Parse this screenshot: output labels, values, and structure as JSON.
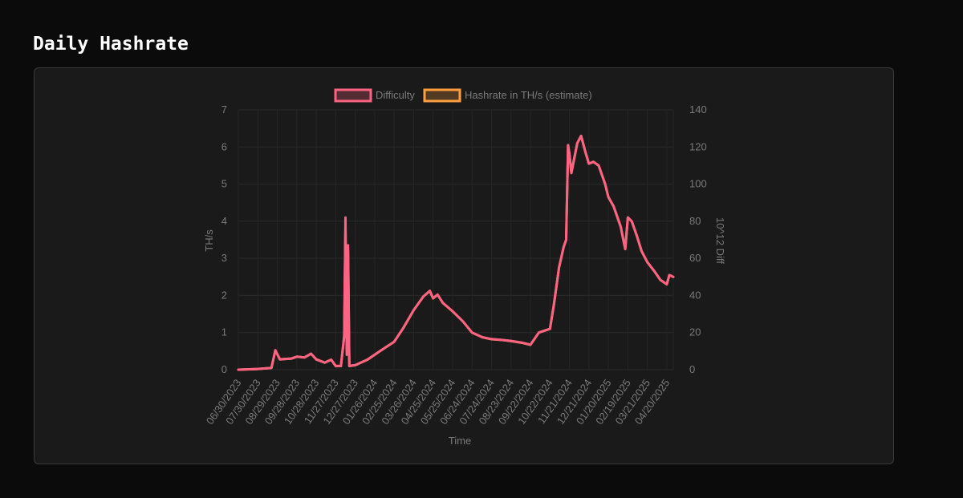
{
  "page": {
    "title": "Daily Hashrate"
  },
  "chart_data": {
    "type": "line",
    "title": "",
    "xlabel": "Time",
    "ylabel_left": "TH/s",
    "ylabel_right": "10^12 Diff",
    "ylim_left": [
      0,
      7
    ],
    "ylim_right": [
      0,
      140
    ],
    "yticks_left": [
      "0",
      "1",
      "2",
      "3",
      "4",
      "5",
      "6",
      "7"
    ],
    "yticks_right": [
      "0",
      "20",
      "40",
      "60",
      "80",
      "100",
      "120",
      "140"
    ],
    "xlim": [
      "06/30/2023",
      "04/30/2025"
    ],
    "xticks": [
      "06/30/2023",
      "07/30/2023",
      "08/29/2023",
      "09/28/2023",
      "10/28/2023",
      "11/27/2023",
      "12/27/2023",
      "01/26/2024",
      "02/25/2024",
      "03/26/2024",
      "04/25/2024",
      "05/25/2024",
      "06/24/2024",
      "07/24/2024",
      "08/23/2024",
      "09/22/2024",
      "10/22/2024",
      "11/21/2024",
      "12/21/2024",
      "01/20/2025",
      "02/19/2025",
      "03/21/2025",
      "04/20/2025"
    ],
    "grid": true,
    "legend_position": "top",
    "series": [
      {
        "name": "Difficulty",
        "axis": "right",
        "color": "#ff6384",
        "points": [
          [
            "06/30/2023",
            0
          ],
          [
            "07/30/2023",
            0.4
          ],
          [
            "08/20/2023",
            1
          ],
          [
            "08/26/2023",
            10.5
          ],
          [
            "09/02/2023",
            5.5
          ],
          [
            "09/20/2023",
            6
          ],
          [
            "09/28/2023",
            7
          ],
          [
            "10/10/2023",
            6.6
          ],
          [
            "10/20/2023",
            8.6
          ],
          [
            "10/28/2023",
            5.5
          ],
          [
            "11/10/2023",
            3.8
          ],
          [
            "11/20/2023",
            5.4
          ],
          [
            "11/27/2023",
            2
          ],
          [
            "12/05/2023",
            2
          ],
          [
            "12/10/2023",
            18
          ],
          [
            "12/12/2023",
            82
          ],
          [
            "12/14/2023",
            8
          ],
          [
            "12/16/2023",
            67
          ],
          [
            "12/18/2023",
            2
          ],
          [
            "12/27/2023",
            2.4
          ],
          [
            "01/15/2024",
            5.5
          ],
          [
            "02/05/2024",
            10.5
          ],
          [
            "02/25/2024",
            15
          ],
          [
            "03/10/2024",
            22.5
          ],
          [
            "03/26/2024",
            32
          ],
          [
            "04/10/2024",
            39.5
          ],
          [
            "04/20/2024",
            42.5
          ],
          [
            "04/25/2024",
            38.5
          ],
          [
            "05/02/2024",
            40.5
          ],
          [
            "05/10/2024",
            36
          ],
          [
            "05/25/2024",
            31.5
          ],
          [
            "06/10/2024",
            26
          ],
          [
            "06/24/2024",
            20
          ],
          [
            "07/10/2024",
            17.5
          ],
          [
            "07/24/2024",
            16.5
          ],
          [
            "08/10/2024",
            16
          ],
          [
            "08/23/2024",
            15.5
          ],
          [
            "09/10/2024",
            14.5
          ],
          [
            "09/22/2024",
            13.5
          ],
          [
            "10/05/2024",
            20
          ],
          [
            "10/22/2024",
            22
          ],
          [
            "10/28/2024",
            35
          ],
          [
            "11/05/2024",
            55
          ],
          [
            "11/12/2024",
            66
          ],
          [
            "11/16/2024",
            70
          ],
          [
            "11/19/2024",
            121
          ],
          [
            "11/21/2024",
            116
          ],
          [
            "11/24/2024",
            106
          ],
          [
            "12/03/2024",
            122
          ],
          [
            "12/09/2024",
            126
          ],
          [
            "12/15/2024",
            118
          ],
          [
            "12/21/2024",
            111
          ],
          [
            "12/28/2024",
            112
          ],
          [
            "01/05/2025",
            110
          ],
          [
            "01/15/2025",
            100
          ],
          [
            "01/20/2025",
            93
          ],
          [
            "01/28/2025",
            88
          ],
          [
            "02/08/2025",
            77
          ],
          [
            "02/15/2025",
            65
          ],
          [
            "02/19/2025",
            82
          ],
          [
            "02/25/2025",
            80
          ],
          [
            "03/05/2025",
            72
          ],
          [
            "03/12/2025",
            64
          ],
          [
            "03/21/2025",
            58
          ],
          [
            "04/01/2025",
            53
          ],
          [
            "04/10/2025",
            48.5
          ],
          [
            "04/20/2025",
            46
          ],
          [
            "04/24/2025",
            51
          ],
          [
            "04/30/2025",
            50
          ]
        ]
      },
      {
        "name": "Hashrate in TH/s (estimate)",
        "axis": "left",
        "color": "#ff9f40",
        "points": [
          [
            "06/30/2023",
            0
          ],
          [
            "07/30/2023",
            0.02
          ],
          [
            "08/20/2023",
            0.05
          ],
          [
            "08/26/2023",
            0.52
          ],
          [
            "09/02/2023",
            0.28
          ],
          [
            "09/20/2023",
            0.3
          ],
          [
            "09/28/2023",
            0.35
          ],
          [
            "10/10/2023",
            0.33
          ],
          [
            "10/20/2023",
            0.43
          ],
          [
            "10/28/2023",
            0.28
          ],
          [
            "11/10/2023",
            0.19
          ],
          [
            "11/20/2023",
            0.27
          ],
          [
            "11/27/2023",
            0.1
          ],
          [
            "12/05/2023",
            0.1
          ],
          [
            "12/10/2023",
            0.9
          ],
          [
            "12/12/2023",
            3.8
          ],
          [
            "12/14/2023",
            0.5
          ],
          [
            "12/16/2023",
            3.2
          ],
          [
            "12/18/2023",
            0.1
          ],
          [
            "12/27/2023",
            0.12
          ],
          [
            "01/15/2024",
            0.27
          ],
          [
            "02/05/2024",
            0.52
          ],
          [
            "02/25/2024",
            0.75
          ],
          [
            "03/10/2024",
            1.12
          ],
          [
            "03/26/2024",
            1.6
          ],
          [
            "04/10/2024",
            1.97
          ],
          [
            "04/20/2024",
            2.12
          ],
          [
            "04/25/2024",
            1.92
          ],
          [
            "05/02/2024",
            2.02
          ],
          [
            "05/10/2024",
            1.8
          ],
          [
            "05/25/2024",
            1.57
          ],
          [
            "06/10/2024",
            1.3
          ],
          [
            "06/24/2024",
            1.0
          ],
          [
            "07/10/2024",
            0.87
          ],
          [
            "07/24/2024",
            0.82
          ],
          [
            "08/10/2024",
            0.8
          ],
          [
            "08/23/2024",
            0.77
          ],
          [
            "09/10/2024",
            0.72
          ],
          [
            "09/22/2024",
            0.67
          ],
          [
            "10/05/2024",
            1.0
          ],
          [
            "10/22/2024",
            1.1
          ],
          [
            "10/28/2024",
            1.75
          ],
          [
            "11/05/2024",
            2.75
          ],
          [
            "11/12/2024",
            3.3
          ],
          [
            "11/16/2024",
            3.5
          ],
          [
            "11/19/2024",
            6.05
          ],
          [
            "11/21/2024",
            5.8
          ],
          [
            "11/24/2024",
            5.3
          ],
          [
            "12/03/2024",
            6.1
          ],
          [
            "12/09/2024",
            6.3
          ],
          [
            "12/15/2024",
            5.9
          ],
          [
            "12/21/2024",
            5.55
          ],
          [
            "12/28/2024",
            5.6
          ],
          [
            "01/05/2025",
            5.5
          ],
          [
            "01/15/2025",
            5.0
          ],
          [
            "01/20/2025",
            4.65
          ],
          [
            "01/28/2025",
            4.4
          ],
          [
            "02/08/2025",
            3.85
          ],
          [
            "02/15/2025",
            3.25
          ],
          [
            "02/19/2025",
            4.1
          ],
          [
            "02/25/2025",
            4.0
          ],
          [
            "03/05/2025",
            3.6
          ],
          [
            "03/12/2025",
            3.2
          ],
          [
            "03/21/2025",
            2.9
          ],
          [
            "04/01/2025",
            2.65
          ],
          [
            "04/10/2025",
            2.42
          ],
          [
            "04/20/2025",
            2.3
          ],
          [
            "04/24/2025",
            2.55
          ],
          [
            "04/30/2025",
            2.5
          ]
        ]
      }
    ]
  }
}
